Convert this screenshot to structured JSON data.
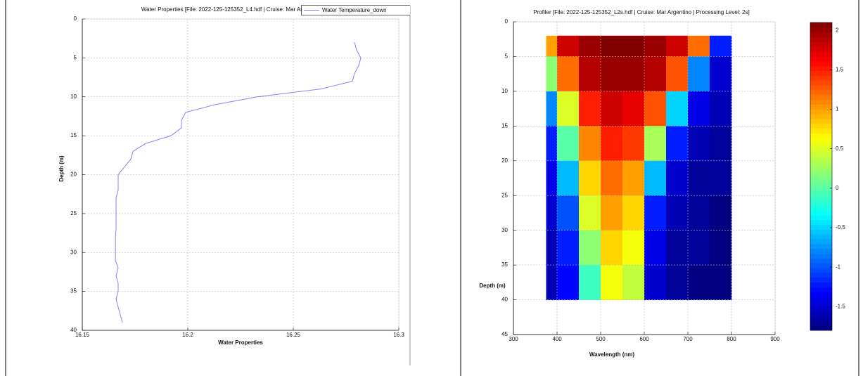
{
  "chart_data": [
    {
      "type": "line",
      "title": "Water Properties [File: 2022-125-125352_L4.hdf | Cruise: Mar Argentino | Proc",
      "xlabel": "Water Properties",
      "ylabel": "Depth (m)",
      "xlim": [
        16.15,
        16.3
      ],
      "xticks": [
        16.15,
        16.2,
        16.25,
        16.3
      ],
      "ylim": [
        0,
        40
      ],
      "yticks": [
        0,
        5,
        10,
        15,
        20,
        25,
        30,
        35,
        40
      ],
      "yreverse": true,
      "grid": true,
      "legend": "top-right",
      "series": [
        {
          "name": "Water Temperature_down",
          "color": "#8080ff",
          "x": [
            16.279,
            16.28,
            16.282,
            16.281,
            16.279,
            16.278,
            16.263,
            16.233,
            16.213,
            16.199,
            16.197,
            16.197,
            16.192,
            16.18,
            16.174,
            16.173,
            16.17,
            16.167,
            16.167,
            16.167,
            16.166,
            16.166,
            16.166,
            16.166,
            16.166,
            16.1657,
            16.1657,
            16.1657,
            16.1657,
            16.167,
            16.166,
            16.167,
            16.167,
            16.166,
            16.167,
            16.168,
            16.169
          ],
          "y": [
            3,
            4,
            5,
            6,
            7,
            8,
            9,
            10,
            11,
            12,
            13,
            14,
            15,
            16,
            17,
            18,
            19,
            20,
            21,
            22,
            23,
            24,
            25,
            26,
            27,
            28,
            29,
            30,
            31,
            32,
            33,
            34,
            35,
            36,
            37,
            38,
            39
          ]
        }
      ]
    },
    {
      "type": "heatmap",
      "title": "Profiler [File: 2022-125-125352_L2s.hdf | Cruise: Mar Argentino | Processing Level: 2s]",
      "xlabel": "Wavelength (nm)",
      "ylabel": "Depth (m)",
      "xlim": [
        300,
        900
      ],
      "xticks": [
        300,
        400,
        500,
        600,
        700,
        800,
        900
      ],
      "ylim": [
        0,
        45
      ],
      "yticks": [
        0,
        5,
        10,
        15,
        20,
        25,
        30,
        35,
        40,
        45
      ],
      "yreverse": true,
      "grid": true,
      "clim": [
        -1.8,
        2.1
      ],
      "cticks": [
        -1.5,
        -1,
        -0.5,
        0,
        0.5,
        1,
        1.5,
        2
      ],
      "colormap": "jet",
      "xbins": [
        375,
        400,
        450,
        500,
        550,
        600,
        650,
        700,
        750,
        800
      ],
      "ybins": [
        2,
        5,
        10,
        15,
        20,
        25,
        30,
        35,
        40
      ],
      "values": [
        [
          1.0,
          1.8,
          2.0,
          2.1,
          2.1,
          2.0,
          1.8,
          1.2,
          -1.2
        ],
        [
          0.2,
          1.2,
          1.9,
          2.0,
          2.0,
          1.9,
          1.3,
          -0.8,
          -1.5
        ],
        [
          -0.8,
          0.5,
          1.5,
          1.8,
          1.7,
          1.3,
          -0.5,
          -1.4,
          -1.6
        ],
        [
          -1.2,
          0.0,
          1.1,
          1.5,
          1.4,
          0.3,
          -1.2,
          -1.6,
          -1.7
        ],
        [
          -1.4,
          -0.6,
          0.8,
          1.2,
          1.0,
          -0.6,
          -1.5,
          -1.7,
          -1.7
        ],
        [
          -1.5,
          -1.0,
          0.5,
          1.0,
          0.8,
          -1.2,
          -1.6,
          -1.7,
          -1.8
        ],
        [
          -1.6,
          -1.2,
          0.2,
          0.8,
          0.6,
          -1.4,
          -1.7,
          -1.7,
          -1.8
        ],
        [
          -1.6,
          -1.3,
          -0.1,
          0.6,
          0.4,
          -1.5,
          -1.7,
          -1.8,
          -1.8
        ]
      ]
    }
  ]
}
